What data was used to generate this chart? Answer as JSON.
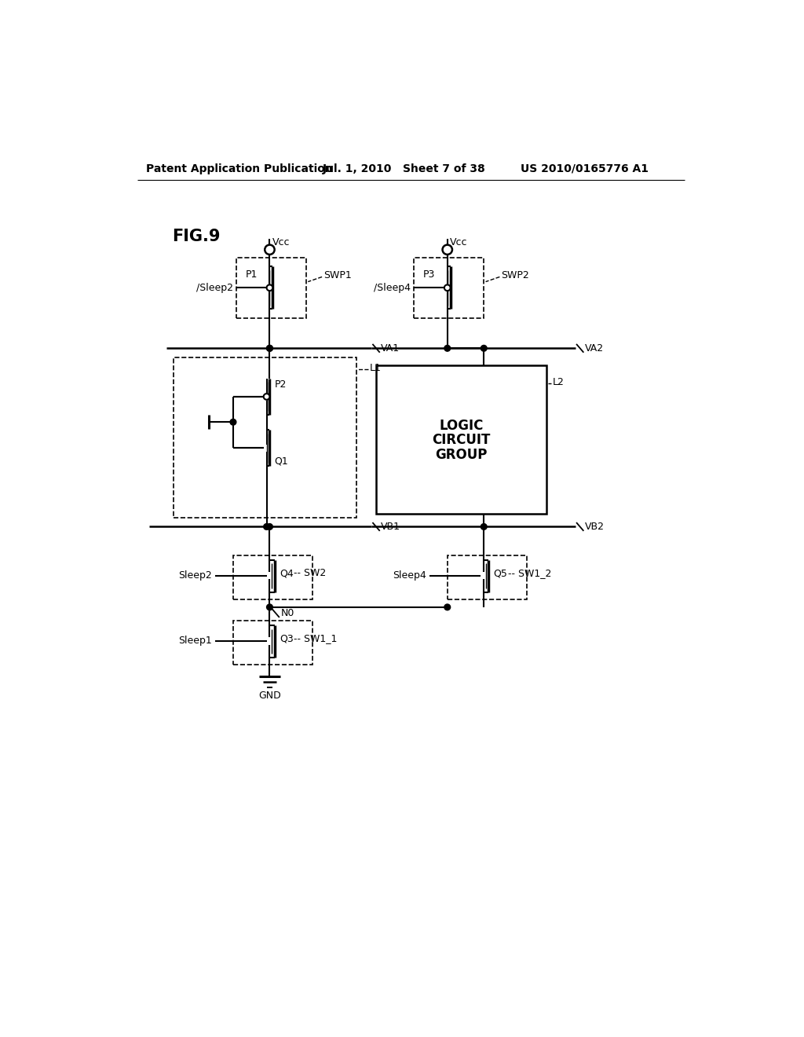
{
  "bg": "#ffffff",
  "header_left": "Patent Application Publication",
  "header_mid": "Jul. 1, 2010   Sheet 7 of 38",
  "header_right": "US 2010/0165776 A1",
  "fig_label": "FIG.9",
  "vcc1_label": "Vcc",
  "vcc2_label": "Vcc",
  "p1_label": "P1",
  "p2_label": "P2",
  "p3_label": "P3",
  "q1_label": "Q1",
  "q3_label": "Q3",
  "q4_label": "Q4",
  "q5_label": "Q5",
  "swp1_label": "SWP1",
  "swp2_label": "SWP2",
  "sw2_label": "SW2",
  "sw12_label": "SW1_2",
  "sw11_label": "SW1_1",
  "va1_label": "VA1",
  "va2_label": "VA2",
  "vb1_label": "VB1",
  "vb2_label": "VB2",
  "l1_label": "L1",
  "l2_label": "L2",
  "n0_label": "N0",
  "gnd_label": "GND",
  "sleep1_label": "Sleep1",
  "sleep2_label": "Sleep2",
  "sleep4_label": "Sleep4",
  "slashsleep2_label": "/Sleep2",
  "slashsleep4_label": "/Sleep4",
  "logic_line1": "LOGIC",
  "logic_line2": "CIRCUIT",
  "logic_line3": "GROUP"
}
